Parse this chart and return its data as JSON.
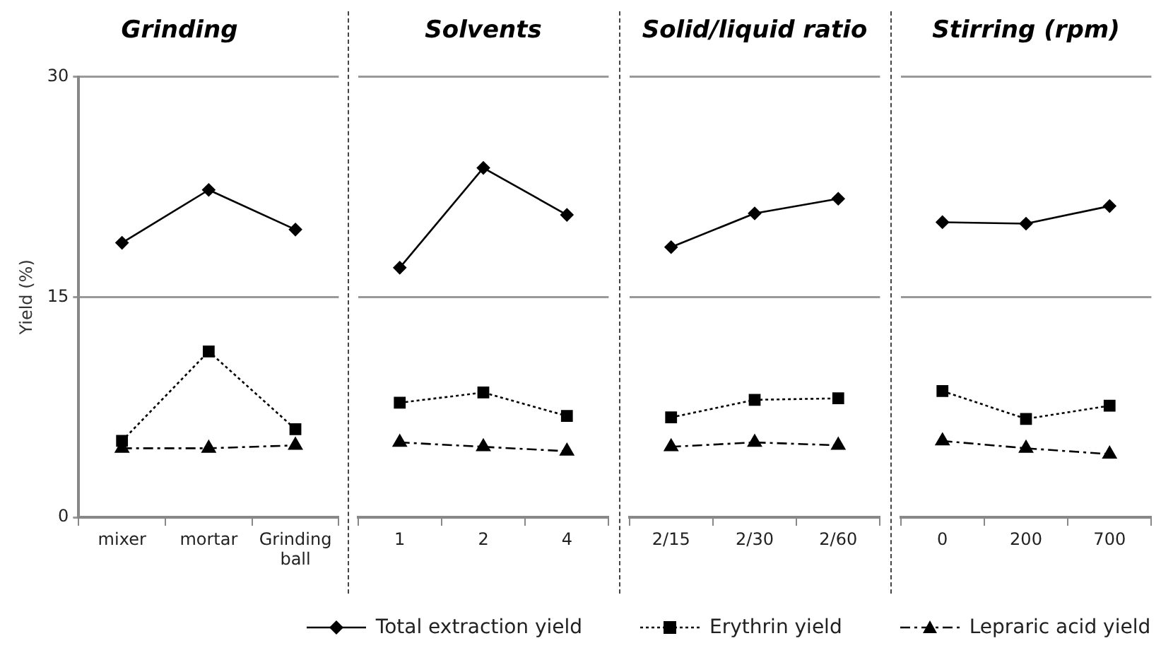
{
  "chart_data": [
    {
      "type": "line",
      "title": "Grinding",
      "ylabel": "Yield (%)",
      "categories": [
        "mixer",
        "mortar",
        "Grinding\nball"
      ],
      "ylim": [
        0,
        30
      ],
      "yticks": [
        0,
        15,
        30
      ],
      "grid": "y",
      "legend": "bottom",
      "series": [
        {
          "name": "Total extraction yield",
          "color": "#000000",
          "marker": "diamond",
          "line_style": "solid",
          "values": [
            18.7,
            22.3,
            19.6
          ]
        },
        {
          "name": "Erythrin yield",
          "color": "#000000",
          "marker": "square",
          "line_style": "dotted",
          "values": [
            5.2,
            11.3,
            6.0
          ]
        },
        {
          "name": "Lepraric acid yield",
          "color": "#000000",
          "marker": "triangle",
          "line_style": "dashed",
          "values": [
            4.7,
            4.7,
            4.9
          ]
        }
      ]
    },
    {
      "type": "line",
      "title": "Solvents",
      "categories": [
        "1",
        "2",
        "4"
      ],
      "ylim": [
        0,
        30
      ],
      "yticks": [
        0,
        15,
        30
      ],
      "grid": "y",
      "tick_labels": "x",
      "series": [
        {
          "color": "#000000",
          "marker": "diamond",
          "line_style": "solid",
          "values": [
            17.0,
            23.8,
            20.6
          ]
        },
        {
          "color": "#000000",
          "marker": "square",
          "line_style": "dotted",
          "values": [
            7.8,
            8.5,
            6.9
          ]
        },
        {
          "color": "#000000",
          "marker": "triangle",
          "line_style": "dashed",
          "values": [
            5.1,
            4.8,
            4.5
          ]
        }
      ]
    },
    {
      "type": "line",
      "title": "Solid/liquid ratio",
      "categories": [
        "2/15",
        "2/30",
        "2/60"
      ],
      "ylim": [
        0,
        30
      ],
      "yticks": [
        0,
        15,
        30
      ],
      "grid": "y",
      "tick_labels": "x",
      "series": [
        {
          "color": "#000000",
          "marker": "diamond",
          "line_style": "solid",
          "values": [
            18.4,
            20.7,
            21.7
          ]
        },
        {
          "color": "#000000",
          "marker": "square",
          "line_style": "dotted",
          "values": [
            6.8,
            8.0,
            8.1
          ]
        },
        {
          "color": "#000000",
          "marker": "triangle",
          "line_style": "dashed",
          "values": [
            4.8,
            5.1,
            4.9
          ]
        }
      ]
    },
    {
      "type": "line",
      "title": "Stirring (rpm)",
      "categories": [
        "0",
        "200",
        "700"
      ],
      "ylim": [
        0,
        30
      ],
      "yticks": [
        0,
        15,
        30
      ],
      "grid": "y",
      "tick_labels": "x",
      "series": [
        {
          "color": "#000000",
          "marker": "diamond",
          "line_style": "solid",
          "values": [
            20.1,
            20.0,
            21.2
          ]
        },
        {
          "color": "#000000",
          "marker": "square",
          "line_style": "dotted",
          "values": [
            8.6,
            6.7,
            7.6
          ]
        },
        {
          "color": "#000000",
          "marker": "triangle",
          "line_style": "dashed",
          "values": [
            5.2,
            4.7,
            4.3
          ]
        }
      ]
    }
  ]
}
